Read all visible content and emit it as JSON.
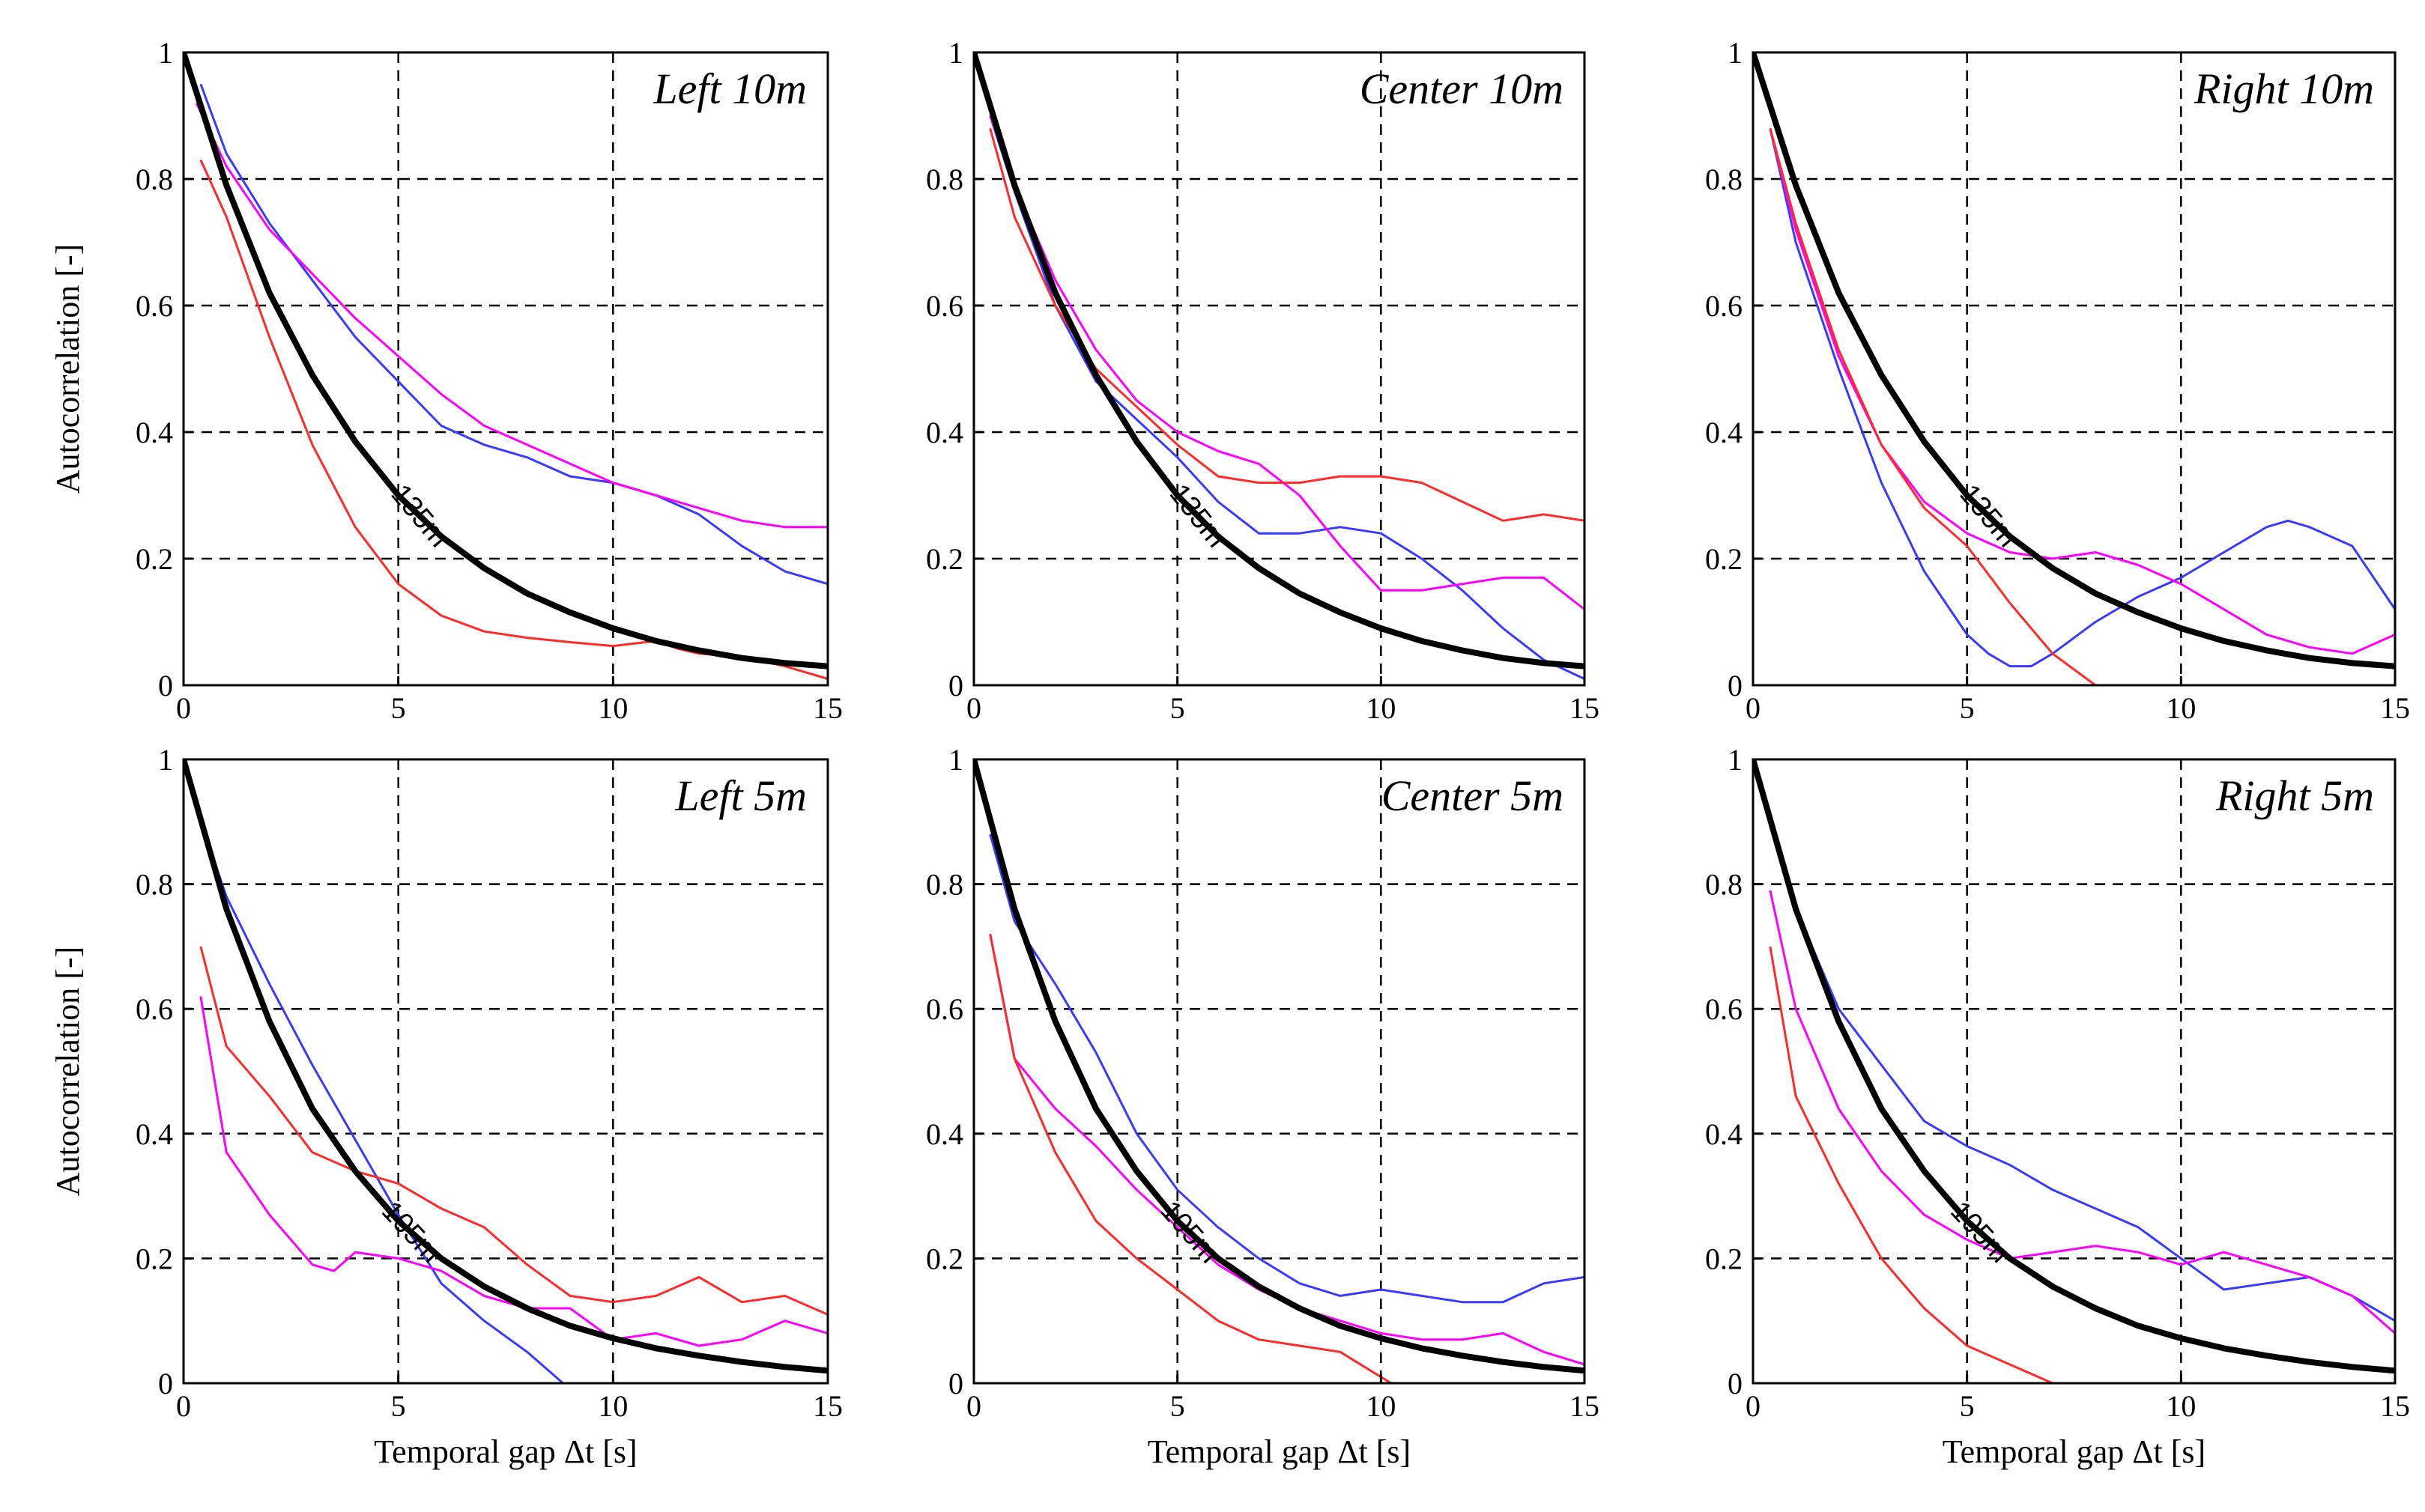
{
  "chart_data": [
    {
      "type": "line",
      "title": "Left 10m",
      "xlabel": "",
      "ylabel": "Autocorrelation [-]",
      "xlim": [
        0,
        15
      ],
      "ylim": [
        0,
        1
      ],
      "xticks": [
        "0",
        "5",
        "10",
        "15"
      ],
      "yticks": [
        "0",
        "0.2",
        "0.4",
        "0.6",
        "0.8",
        "1"
      ],
      "grid": true,
      "curve_label": "135m",
      "curve_label_at": 5.5,
      "series": [
        {
          "name": "black",
          "x": [
            0,
            1,
            2,
            3,
            4,
            5,
            6,
            7,
            8,
            9,
            10,
            11,
            12,
            13,
            14,
            15
          ],
          "values": [
            1,
            0.79,
            0.62,
            0.49,
            0.385,
            0.3,
            0.235,
            0.185,
            0.145,
            0.115,
            0.09,
            0.07,
            0.055,
            0.043,
            0.035,
            0.03
          ]
        },
        {
          "name": "blue",
          "x": [
            0.4,
            1,
            2,
            3,
            4,
            5,
            6,
            7,
            8,
            9,
            10,
            11,
            12,
            13,
            14,
            15
          ],
          "values": [
            0.95,
            0.84,
            0.73,
            0.64,
            0.55,
            0.48,
            0.41,
            0.38,
            0.36,
            0.33,
            0.32,
            0.3,
            0.27,
            0.22,
            0.18,
            0.16
          ]
        },
        {
          "name": "magenta",
          "x": [
            0.3,
            1,
            2,
            3,
            4,
            5,
            6,
            7,
            8,
            9,
            10,
            11,
            12,
            13,
            14,
            15
          ],
          "values": [
            0.92,
            0.82,
            0.72,
            0.65,
            0.58,
            0.52,
            0.46,
            0.41,
            0.38,
            0.35,
            0.32,
            0.3,
            0.28,
            0.26,
            0.25,
            0.25
          ]
        },
        {
          "name": "red",
          "x": [
            0.4,
            1,
            2,
            3,
            4,
            5,
            6,
            7,
            8,
            9,
            10,
            11,
            11.5,
            12,
            13,
            14,
            15
          ],
          "values": [
            0.83,
            0.74,
            0.55,
            0.38,
            0.25,
            0.16,
            0.11,
            0.085,
            0.075,
            0.068,
            0.062,
            0.07,
            0.058,
            0.05,
            0.045,
            0.03,
            0.01
          ]
        }
      ]
    },
    {
      "type": "line",
      "title": "Center 10m",
      "xlabel": "",
      "ylabel": "",
      "xlim": [
        0,
        15
      ],
      "ylim": [
        0,
        1
      ],
      "xticks": [
        "0",
        "5",
        "10",
        "15"
      ],
      "yticks": [
        "0",
        "0.2",
        "0.4",
        "0.6",
        "0.8",
        "1"
      ],
      "grid": true,
      "curve_label": "135m",
      "curve_label_at": 5.5,
      "series": [
        {
          "name": "black",
          "x": [
            0,
            1,
            2,
            3,
            4,
            5,
            6,
            7,
            8,
            9,
            10,
            11,
            12,
            13,
            14,
            15
          ],
          "values": [
            1,
            0.79,
            0.62,
            0.49,
            0.385,
            0.3,
            0.235,
            0.185,
            0.145,
            0.115,
            0.09,
            0.07,
            0.055,
            0.043,
            0.035,
            0.03
          ]
        },
        {
          "name": "blue",
          "x": [
            0.4,
            1,
            2,
            3,
            4,
            5,
            6,
            7,
            8,
            9,
            10,
            11,
            12,
            13,
            14,
            15
          ],
          "values": [
            0.9,
            0.78,
            0.6,
            0.48,
            0.42,
            0.36,
            0.29,
            0.24,
            0.24,
            0.25,
            0.24,
            0.2,
            0.15,
            0.09,
            0.04,
            0.01
          ]
        },
        {
          "name": "magenta",
          "x": [
            0.4,
            1,
            2,
            3,
            4,
            5,
            6,
            7,
            8,
            9,
            10,
            11,
            12,
            13,
            14,
            15
          ],
          "values": [
            0.9,
            0.79,
            0.64,
            0.53,
            0.45,
            0.4,
            0.37,
            0.35,
            0.3,
            0.22,
            0.15,
            0.15,
            0.16,
            0.17,
            0.17,
            0.12
          ]
        },
        {
          "name": "red",
          "x": [
            0.4,
            1,
            2,
            3,
            4,
            5,
            6,
            7,
            8,
            9,
            10,
            11,
            12,
            13,
            14,
            15
          ],
          "values": [
            0.88,
            0.74,
            0.6,
            0.5,
            0.44,
            0.38,
            0.33,
            0.32,
            0.32,
            0.33,
            0.33,
            0.32,
            0.29,
            0.26,
            0.27,
            0.26
          ]
        }
      ]
    },
    {
      "type": "line",
      "title": "Right 10m",
      "xlabel": "",
      "ylabel": "",
      "xlim": [
        0,
        15
      ],
      "ylim": [
        0,
        1
      ],
      "xticks": [
        "0",
        "5",
        "10",
        "15"
      ],
      "yticks": [
        "0",
        "0.2",
        "0.4",
        "0.6",
        "0.8",
        "1"
      ],
      "grid": true,
      "curve_label": "135m",
      "curve_label_at": 5.5,
      "series": [
        {
          "name": "black",
          "x": [
            0,
            1,
            2,
            3,
            4,
            5,
            6,
            7,
            8,
            9,
            10,
            11,
            12,
            13,
            14,
            15
          ],
          "values": [
            1,
            0.79,
            0.62,
            0.49,
            0.385,
            0.3,
            0.235,
            0.185,
            0.145,
            0.115,
            0.09,
            0.07,
            0.055,
            0.043,
            0.035,
            0.03
          ]
        },
        {
          "name": "blue",
          "x": [
            0.4,
            1,
            2,
            3,
            4,
            5,
            5.5,
            6,
            6.5,
            7,
            8,
            9,
            10,
            11,
            12,
            12.5,
            13,
            14,
            15
          ],
          "values": [
            0.88,
            0.7,
            0.5,
            0.32,
            0.18,
            0.08,
            0.05,
            0.03,
            0.03,
            0.05,
            0.1,
            0.14,
            0.17,
            0.21,
            0.25,
            0.26,
            0.25,
            0.22,
            0.12
          ]
        },
        {
          "name": "magenta",
          "x": [
            0.4,
            1,
            2,
            3,
            4,
            5,
            6,
            7,
            8,
            9,
            10,
            11,
            12,
            13,
            14,
            15
          ],
          "values": [
            0.88,
            0.72,
            0.52,
            0.38,
            0.29,
            0.24,
            0.21,
            0.2,
            0.21,
            0.19,
            0.16,
            0.12,
            0.08,
            0.06,
            0.05,
            0.08
          ]
        },
        {
          "name": "red",
          "x": [
            0.4,
            1,
            2,
            3,
            4,
            5,
            6,
            7,
            8
          ],
          "values": [
            0.88,
            0.73,
            0.53,
            0.38,
            0.28,
            0.22,
            0.13,
            0.05,
            0.0
          ]
        }
      ]
    },
    {
      "type": "line",
      "title": "Left 5m",
      "xlabel": "Temporal gap Δt [s]",
      "ylabel": "Autocorrelation [-]",
      "xlim": [
        0,
        15
      ],
      "ylim": [
        0,
        1
      ],
      "xticks": [
        "0",
        "5",
        "10",
        "15"
      ],
      "yticks": [
        "0",
        "0.2",
        "0.4",
        "0.6",
        "0.8",
        "1"
      ],
      "grid": true,
      "curve_label": "105m",
      "curve_label_at": 5.3,
      "series": [
        {
          "name": "black",
          "x": [
            0,
            1,
            2,
            3,
            4,
            5,
            6,
            7,
            8,
            9,
            10,
            11,
            12,
            13,
            14,
            15
          ],
          "values": [
            1,
            0.76,
            0.58,
            0.44,
            0.34,
            0.26,
            0.2,
            0.155,
            0.12,
            0.092,
            0.072,
            0.056,
            0.044,
            0.034,
            0.026,
            0.02
          ]
        },
        {
          "name": "blue",
          "x": [
            0.3,
            1,
            2,
            3,
            4,
            5,
            6,
            7,
            8,
            9
          ],
          "values": [
            0.92,
            0.78,
            0.64,
            0.51,
            0.39,
            0.27,
            0.16,
            0.1,
            0.05,
            -0.01
          ]
        },
        {
          "name": "magenta",
          "x": [
            0.4,
            1,
            2,
            3,
            3.5,
            4,
            5,
            6,
            7,
            8,
            9,
            10,
            11,
            12,
            13,
            14,
            15
          ],
          "values": [
            0.62,
            0.37,
            0.27,
            0.19,
            0.18,
            0.21,
            0.2,
            0.18,
            0.14,
            0.12,
            0.12,
            0.07,
            0.08,
            0.06,
            0.07,
            0.1,
            0.08
          ]
        },
        {
          "name": "red",
          "x": [
            0.4,
            1,
            2,
            3,
            4,
            5,
            6,
            7,
            8,
            9,
            10,
            11,
            12,
            13,
            14,
            15
          ],
          "values": [
            0.7,
            0.54,
            0.46,
            0.37,
            0.34,
            0.32,
            0.28,
            0.25,
            0.19,
            0.14,
            0.13,
            0.14,
            0.17,
            0.13,
            0.14,
            0.11
          ]
        }
      ]
    },
    {
      "type": "line",
      "title": "Center 5m",
      "xlabel": "Temporal gap Δt [s]",
      "ylabel": "",
      "xlim": [
        0,
        15
      ],
      "ylim": [
        0,
        1
      ],
      "xticks": [
        "0",
        "5",
        "10",
        "15"
      ],
      "yticks": [
        "0",
        "0.2",
        "0.4",
        "0.6",
        "0.8",
        "1"
      ],
      "grid": true,
      "curve_label": "105m",
      "curve_label_at": 5.3,
      "series": [
        {
          "name": "black",
          "x": [
            0,
            1,
            2,
            3,
            4,
            5,
            6,
            7,
            8,
            9,
            10,
            11,
            12,
            13,
            14,
            15
          ],
          "values": [
            1,
            0.76,
            0.58,
            0.44,
            0.34,
            0.26,
            0.2,
            0.155,
            0.12,
            0.092,
            0.072,
            0.056,
            0.044,
            0.034,
            0.026,
            0.02
          ]
        },
        {
          "name": "blue",
          "x": [
            0.4,
            1,
            2,
            3,
            4,
            5,
            6,
            7,
            8,
            9,
            10,
            11,
            12,
            13,
            14,
            15
          ],
          "values": [
            0.88,
            0.74,
            0.64,
            0.53,
            0.4,
            0.31,
            0.25,
            0.2,
            0.16,
            0.14,
            0.15,
            0.14,
            0.13,
            0.13,
            0.16,
            0.17
          ]
        },
        {
          "name": "magenta",
          "x": [
            0.4,
            1,
            2,
            3,
            4,
            5,
            6,
            7,
            8,
            9,
            10,
            11,
            12,
            13,
            14,
            15
          ],
          "values": [
            0.72,
            0.52,
            0.44,
            0.38,
            0.31,
            0.25,
            0.19,
            0.15,
            0.12,
            0.1,
            0.08,
            0.07,
            0.07,
            0.08,
            0.05,
            0.03
          ]
        },
        {
          "name": "red",
          "x": [
            0.4,
            1,
            2,
            3,
            4,
            5,
            6,
            7,
            8,
            9,
            10,
            10.5
          ],
          "values": [
            0.72,
            0.52,
            0.37,
            0.26,
            0.2,
            0.15,
            0.1,
            0.07,
            0.06,
            0.05,
            0.01,
            -0.01
          ]
        }
      ]
    },
    {
      "type": "line",
      "title": "Right 5m",
      "xlabel": "Temporal gap Δt [s]",
      "ylabel": "",
      "xlim": [
        0,
        15
      ],
      "ylim": [
        0,
        1
      ],
      "xticks": [
        "0",
        "5",
        "10",
        "15"
      ],
      "yticks": [
        "0",
        "0.2",
        "0.4",
        "0.6",
        "0.8",
        "1"
      ],
      "grid": true,
      "curve_label": "105m",
      "curve_label_at": 5.3,
      "series": [
        {
          "name": "black",
          "x": [
            0,
            1,
            2,
            3,
            4,
            5,
            6,
            7,
            8,
            9,
            10,
            11,
            12,
            13,
            14,
            15
          ],
          "values": [
            1,
            0.76,
            0.58,
            0.44,
            0.34,
            0.26,
            0.2,
            0.155,
            0.12,
            0.092,
            0.072,
            0.056,
            0.044,
            0.034,
            0.026,
            0.02
          ]
        },
        {
          "name": "blue",
          "x": [
            0.3,
            1,
            2,
            3,
            4,
            5,
            6,
            7,
            8,
            9,
            10,
            11,
            12,
            13,
            14,
            15
          ],
          "values": [
            0.92,
            0.76,
            0.6,
            0.51,
            0.42,
            0.38,
            0.35,
            0.31,
            0.28,
            0.25,
            0.2,
            0.15,
            0.16,
            0.17,
            0.14,
            0.1
          ]
        },
        {
          "name": "magenta",
          "x": [
            0.4,
            1,
            2,
            3,
            4,
            5,
            6,
            7,
            8,
            9,
            10,
            11,
            12,
            13,
            14,
            15
          ],
          "values": [
            0.79,
            0.6,
            0.44,
            0.34,
            0.27,
            0.23,
            0.2,
            0.21,
            0.22,
            0.21,
            0.19,
            0.21,
            0.19,
            0.17,
            0.14,
            0.08
          ]
        },
        {
          "name": "red",
          "x": [
            0.4,
            1,
            2,
            3,
            4,
            5,
            6,
            7
          ],
          "values": [
            0.7,
            0.46,
            0.32,
            0.2,
            0.12,
            0.06,
            0.03,
            0.0
          ]
        }
      ]
    }
  ]
}
